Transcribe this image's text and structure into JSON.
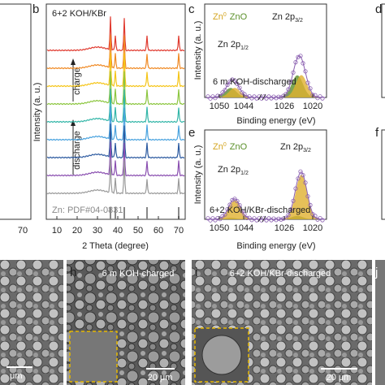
{
  "panels": {
    "a": {
      "tick": "70"
    },
    "b": {
      "label": "b",
      "annotation": "6+2 KOH/KBr",
      "charge": "charge",
      "discharge": "discharge",
      "reference": "Zn: PDF#04-0831",
      "x_ticks": [
        "10",
        "20",
        "30",
        "40",
        "50",
        "60",
        "70"
      ],
      "x_label": "2 Theta (degree)",
      "y_label": "Intensity (a. u.)"
    },
    "c": {
      "label": "c",
      "legend": [
        {
          "main": "Zn",
          "sup": "0"
        },
        {
          "main": "ZnO"
        }
      ],
      "peak_left": {
        "main": "Zn 2p",
        "sub": "1/2"
      },
      "peak_right": {
        "main": "Zn 2p",
        "sub": "3/2"
      },
      "annotation": "6 m KOH-discharged",
      "x_ticks": [
        "1050",
        "1044",
        "1026",
        "1020"
      ],
      "x_label": "Binding energy (eV)",
      "y_label": "Intensity (a. u.)"
    },
    "d": {
      "label": "d"
    },
    "e": {
      "label": "e",
      "legend": [
        {
          "main": "Zn",
          "sup": "0"
        },
        {
          "main": "ZnO"
        }
      ],
      "peak_left": {
        "main": "Zn 2p",
        "sub": "1/2"
      },
      "peak_right": {
        "main": "Zn 2p",
        "sub": "3/2"
      },
      "annotation": "6+2 KOH/KBr-discharged",
      "x_ticks": [
        "1050",
        "1044",
        "1026",
        "1020"
      ],
      "x_label": "Binding energy (eV)",
      "y_label": "Intensity (a. u.)"
    },
    "f": {
      "label": "f"
    },
    "g": {
      "scale": "μm"
    },
    "h": {
      "label": "h",
      "annotation": "6 m KOH-charged",
      "scale": "20 μm"
    },
    "i": {
      "label": "i",
      "annotation": "6+2 KOH/KBr-discharged",
      "scale": "20 μm"
    },
    "j": {
      "label": "j"
    }
  }
}
